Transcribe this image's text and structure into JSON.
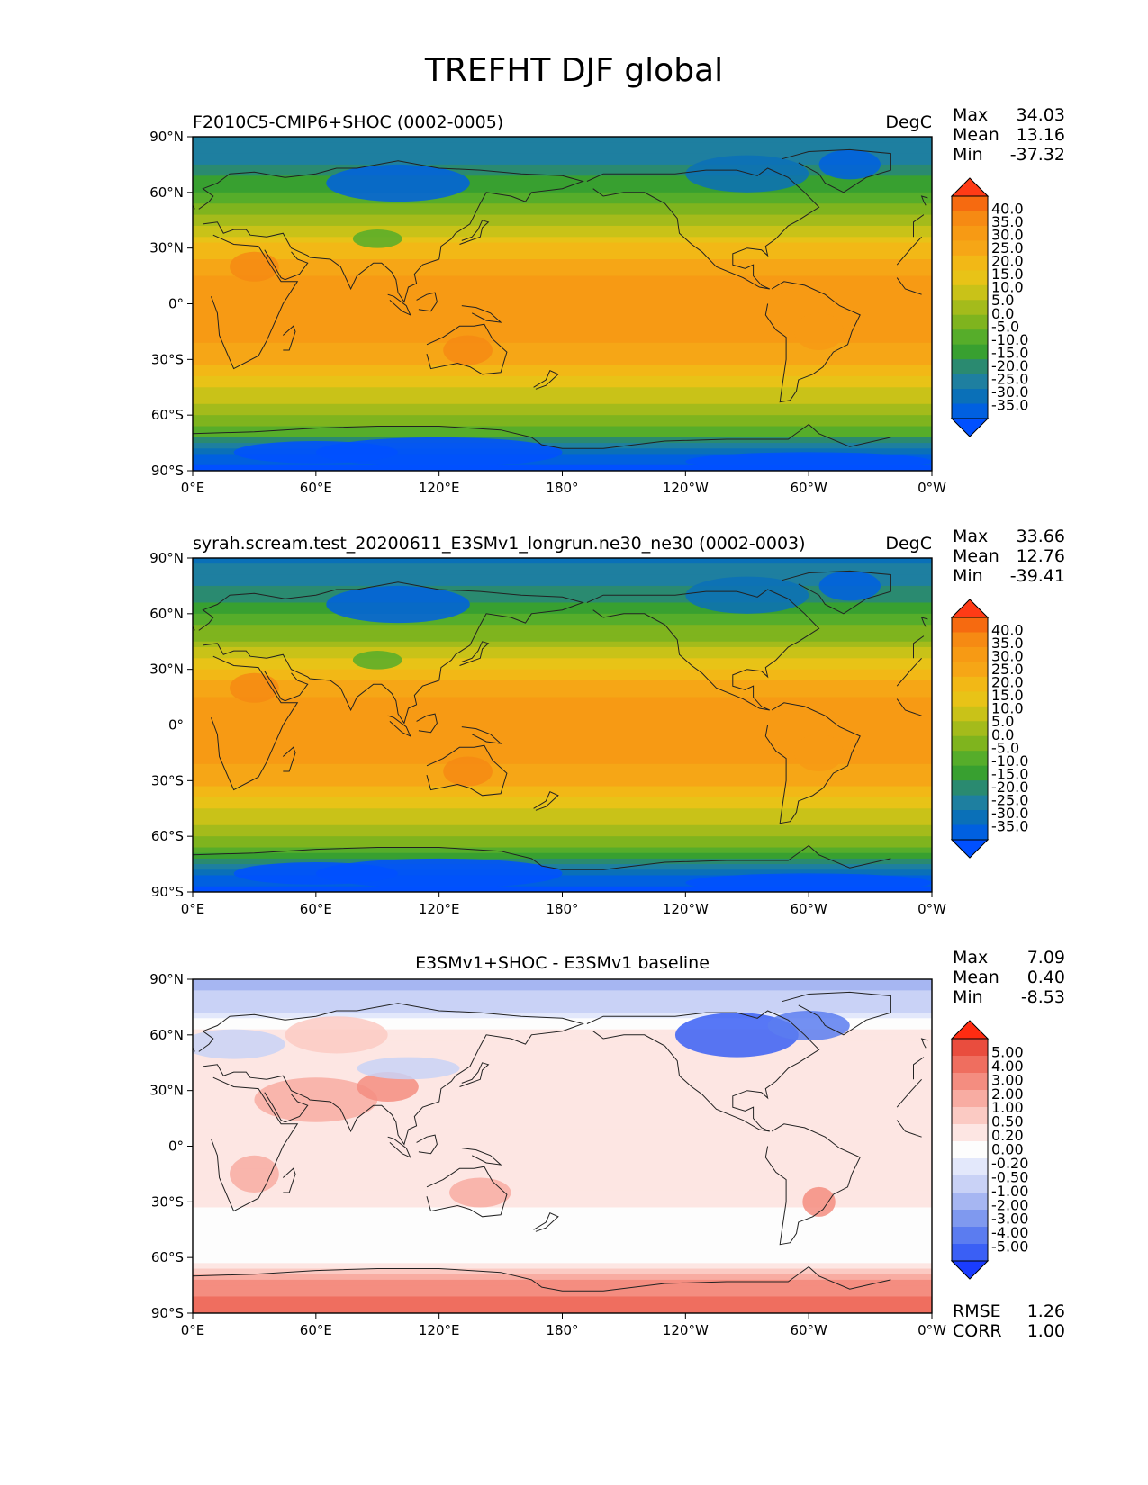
{
  "figure_title": "TREFHT DJF global",
  "colors": {
    "temperature_levels": [
      "#0050ff",
      "#0060e0",
      "#0a70b8",
      "#1e7fa0",
      "#2a8a70",
      "#38a030",
      "#56ad2a",
      "#7fb41e",
      "#a4bb1b",
      "#c9c218",
      "#e8c317",
      "#f2b816",
      "#f6a616",
      "#f79a14",
      "#f68a13",
      "#f66a10",
      "#ff3b16"
    ],
    "difference_levels": [
      "#1a3cff",
      "#3a5ff5",
      "#5b7cf0",
      "#7f99ef",
      "#a6b6f2",
      "#c9d2f6",
      "#e3e8fb",
      "#fdfdfd",
      "#fde6e3",
      "#fbcac3",
      "#f8aca2",
      "#f48d80",
      "#ef6e5f",
      "#e94d3e",
      "#ff2c12"
    ],
    "coastline": "#222222"
  },
  "chart_data": [
    {
      "type": "heatmap",
      "projection": "PlateCarree",
      "title_left": "F2010C5-CMIP6+SHOC (0002-0005)",
      "units": "DegC",
      "stats": {
        "Max": "34.03",
        "Mean": "13.16",
        "Min": "-37.32"
      },
      "xticks": [
        "0°E",
        "60°E",
        "120°E",
        "180°",
        "120°W",
        "60°W",
        "0°W"
      ],
      "yticks": [
        "90°N",
        "60°N",
        "30°N",
        "0°",
        "30°S",
        "60°S",
        "90°S"
      ],
      "xlim": [
        0,
        360
      ],
      "ylim": [
        -90,
        90
      ],
      "colorbar": {
        "extend": "both",
        "levels": [
          "40.0",
          "35.0",
          "30.0",
          "25.0",
          "20.0",
          "15.0",
          "10.0",
          "5.0",
          "0.0",
          "-5.0",
          "-10.0",
          "-15.0",
          "-20.0",
          "-25.0",
          "-30.0",
          "-35.0"
        ]
      },
      "zonal_profile": [
        [
          90,
          -25
        ],
        [
          75,
          -20
        ],
        [
          60,
          -10
        ],
        [
          45,
          2
        ],
        [
          30,
          17
        ],
        [
          15,
          25
        ],
        [
          0,
          27
        ],
        [
          -15,
          27
        ],
        [
          -30,
          22
        ],
        [
          -45,
          10
        ],
        [
          -60,
          0
        ],
        [
          -70,
          -8
        ],
        [
          -80,
          -30
        ],
        [
          -90,
          -36
        ]
      ]
    },
    {
      "type": "heatmap",
      "projection": "PlateCarree",
      "title_left": "syrah.scream.test_20200611_E3SMv1_longrun.ne30_ne30 (0002-0003)",
      "units": "DegC",
      "stats": {
        "Max": "33.66",
        "Mean": "12.76",
        "Min": "-39.41"
      },
      "xticks": [
        "0°E",
        "60°E",
        "120°E",
        "180°",
        "120°W",
        "60°W",
        "0°W"
      ],
      "yticks": [
        "90°N",
        "60°N",
        "30°N",
        "0°",
        "30°S",
        "60°S",
        "90°S"
      ],
      "xlim": [
        0,
        360
      ],
      "ylim": [
        -90,
        90
      ],
      "colorbar": {
        "extend": "both",
        "levels": [
          "40.0",
          "35.0",
          "30.0",
          "25.0",
          "20.0",
          "15.0",
          "10.0",
          "5.0",
          "0.0",
          "-5.0",
          "-10.0",
          "-15.0",
          "-20.0",
          "-25.0",
          "-30.0",
          "-35.0"
        ]
      },
      "zonal_profile": [
        [
          90,
          -26
        ],
        [
          75,
          -21
        ],
        [
          60,
          -11
        ],
        [
          45,
          1
        ],
        [
          30,
          16
        ],
        [
          15,
          25
        ],
        [
          0,
          27
        ],
        [
          -15,
          27
        ],
        [
          -30,
          22
        ],
        [
          -45,
          10
        ],
        [
          -60,
          0
        ],
        [
          -70,
          -9
        ],
        [
          -80,
          -31
        ],
        [
          -90,
          -38
        ]
      ]
    },
    {
      "type": "heatmap",
      "projection": "PlateCarree",
      "title_center": "E3SMv1+SHOC - E3SMv1 baseline",
      "stats": {
        "Max": "7.09",
        "Mean": "0.40",
        "Min": "-8.53"
      },
      "metrics": {
        "RMSE": "1.26",
        "CORR": "1.00"
      },
      "xticks": [
        "0°E",
        "60°E",
        "120°E",
        "180°",
        "120°W",
        "60°W",
        "0°W"
      ],
      "yticks": [
        "90°N",
        "60°N",
        "30°N",
        "0°",
        "30°S",
        "60°S",
        "90°S"
      ],
      "xlim": [
        0,
        360
      ],
      "ylim": [
        -90,
        90
      ],
      "colorbar": {
        "extend": "both",
        "levels": [
          "5.00",
          "4.00",
          "3.00",
          "2.00",
          "1.00",
          "0.50",
          "0.20",
          "0.00",
          "-0.20",
          "-0.50",
          "-1.00",
          "-2.00",
          "-3.00",
          "-4.00",
          "-5.00"
        ]
      },
      "zonal_profile": [
        [
          90,
          -2.5
        ],
        [
          75,
          -1.5
        ],
        [
          60,
          1.0
        ],
        [
          45,
          1.0
        ],
        [
          30,
          1.2
        ],
        [
          15,
          0.8
        ],
        [
          0,
          0.6
        ],
        [
          -15,
          0.6
        ],
        [
          -30,
          0.5
        ],
        [
          -45,
          0.1
        ],
        [
          -55,
          -0.3
        ],
        [
          -62,
          -0.4
        ],
        [
          -70,
          2.5
        ],
        [
          -80,
          3.5
        ],
        [
          -90,
          4.5
        ]
      ]
    }
  ]
}
